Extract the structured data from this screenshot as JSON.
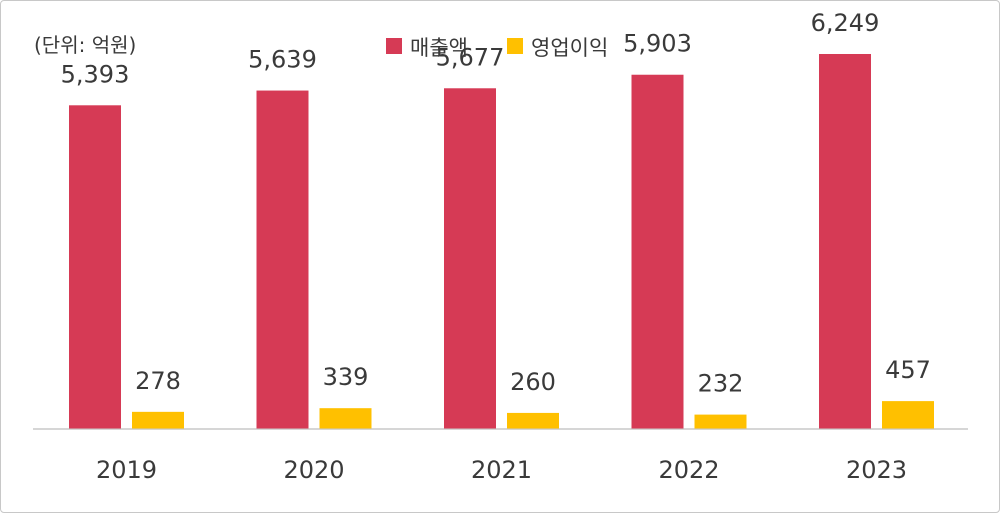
{
  "chart_data": {
    "type": "bar",
    "unit_label": "(단위: 억원)",
    "categories": [
      "2019",
      "2020",
      "2021",
      "2022",
      "2023"
    ],
    "series": [
      {
        "name": "매출액",
        "color": "#d63a55",
        "values": [
          5393,
          5639,
          5677,
          5903,
          6249
        ],
        "labels": [
          "5,393",
          "5,639",
          "5,677",
          "5,903",
          "6,249"
        ]
      },
      {
        "name": "영업이익",
        "color": "#ffc000",
        "values": [
          278,
          339,
          260,
          232,
          457
        ],
        "labels": [
          "278",
          "339",
          "260",
          "232",
          "457"
        ]
      }
    ],
    "ylim": [
      0,
      7150
    ],
    "legend_position": "top-center",
    "grid": false
  }
}
